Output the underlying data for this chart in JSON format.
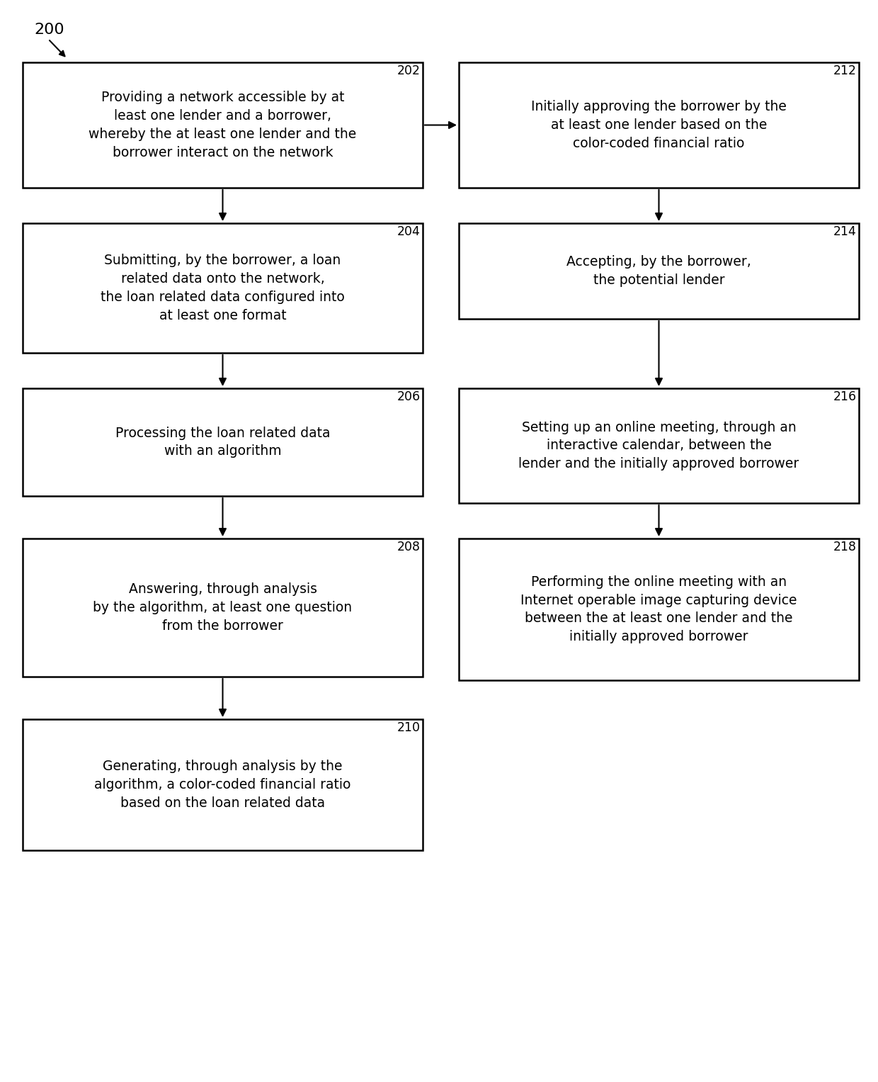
{
  "bg_color": "#ffffff",
  "left_boxes": [
    {
      "id": "202",
      "label": "202",
      "text": "Providing a network accessible by at\nleast one lender and a borrower,\nwhereby the at least one lender and the\nborrower interact on the network"
    },
    {
      "id": "204",
      "label": "204",
      "text": "Submitting, by the borrower, a loan\nrelated data onto the network,\nthe loan related data configured into\nat least one format"
    },
    {
      "id": "206",
      "label": "206",
      "text": "Processing the loan related data\nwith an algorithm"
    },
    {
      "id": "208",
      "label": "208",
      "text": "Answering, through analysis\nby the algorithm, at least one question\nfrom the borrower"
    },
    {
      "id": "210",
      "label": "210",
      "text": "Generating, through analysis by the\nalgorithm, a color-coded financial ratio\nbased on the loan related data"
    }
  ],
  "right_boxes": [
    {
      "id": "212",
      "label": "212",
      "text": "Initially approving the borrower by the\nat least one lender based on the\ncolor-coded financial ratio"
    },
    {
      "id": "214",
      "label": "214",
      "text": "Accepting, by the borrower,\nthe potential lender"
    },
    {
      "id": "216",
      "label": "216",
      "text": "Setting up an online meeting, through an\ninteractive calendar, between the\nlender and the initially approved borrower"
    },
    {
      "id": "218",
      "label": "218",
      "text": "Performing the online meeting with an\nInternet operable image capturing device\nbetween the at least one lender and the\ninitially approved borrower"
    }
  ],
  "figsize": [
    12.4,
    15.27
  ],
  "dpi": 100
}
